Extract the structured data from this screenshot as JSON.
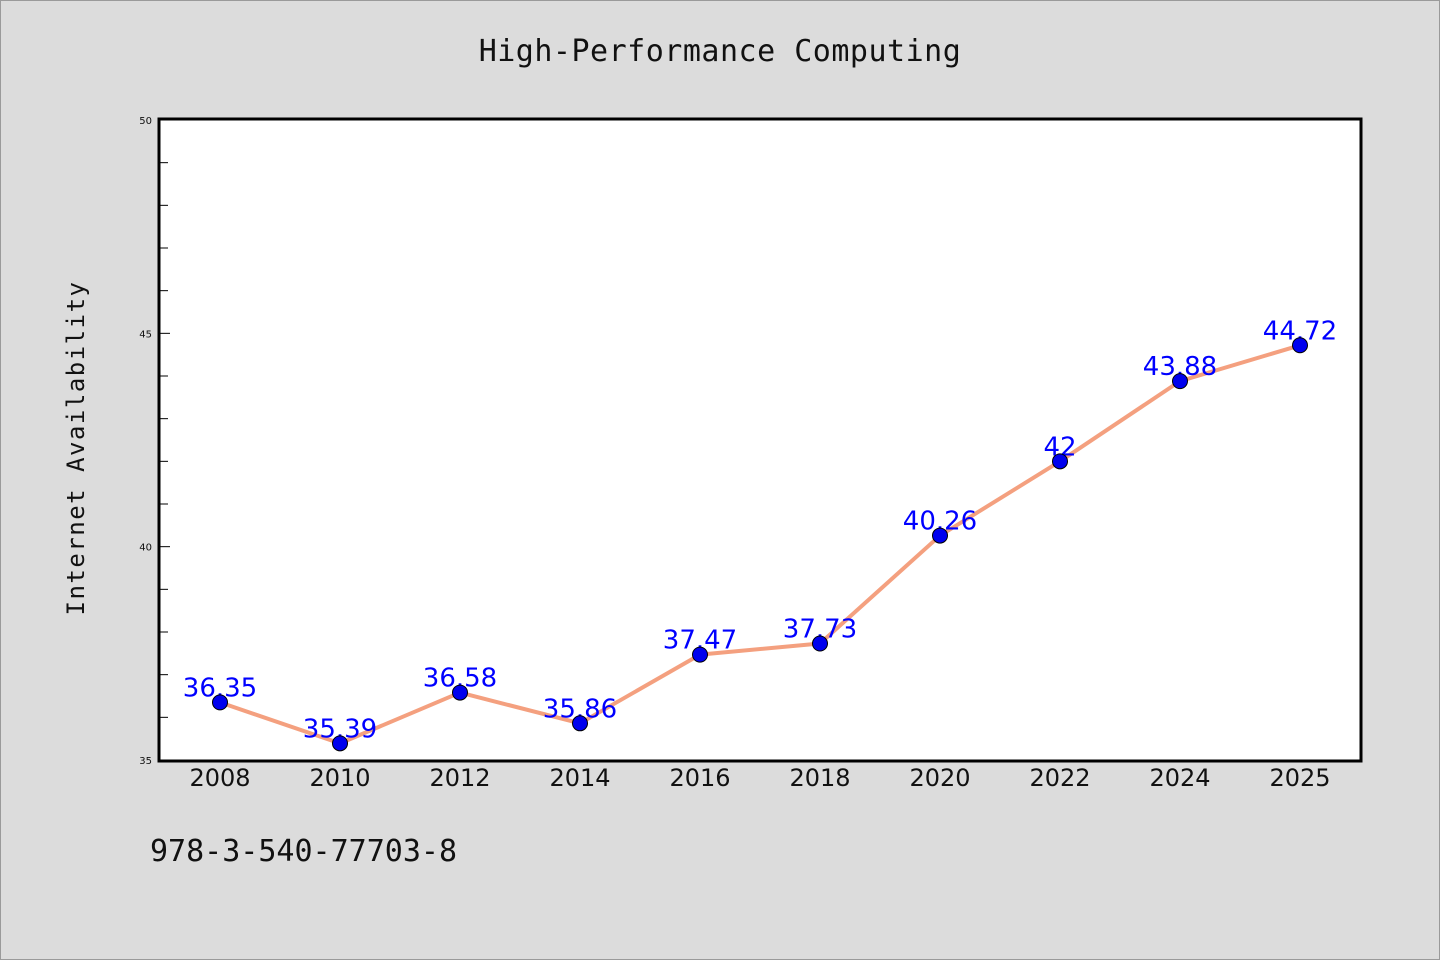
{
  "chart_data": {
    "type": "line",
    "title": "High-Performance Computing",
    "ylabel": "Internet Availability",
    "xlabel": "",
    "categories": [
      "2008",
      "2010",
      "2012",
      "2014",
      "2016",
      "2018",
      "2020",
      "2022",
      "2024",
      "2025"
    ],
    "series": [
      {
        "values": [
          36.35,
          35.39,
          36.58,
          35.86,
          37.47,
          37.73,
          40.26,
          42,
          43.88,
          44.72
        ]
      }
    ],
    "data_labels": [
      "36.35",
      "35.39",
      "36.58",
      "35.86",
      "37.47",
      "37.73",
      "40.26",
      "42",
      "43.88",
      "44.72"
    ],
    "ylim": [
      35,
      50
    ],
    "yticks": [
      "35",
      "40",
      "45",
      "50"
    ],
    "grid": false,
    "colors": {
      "line": "#f4a07f",
      "marker": "#0000ee",
      "label": "#0000ff",
      "background": "#dcdcdc",
      "plot_area": "#ffffff"
    }
  },
  "footer_text": "978-3-540-77703-8"
}
